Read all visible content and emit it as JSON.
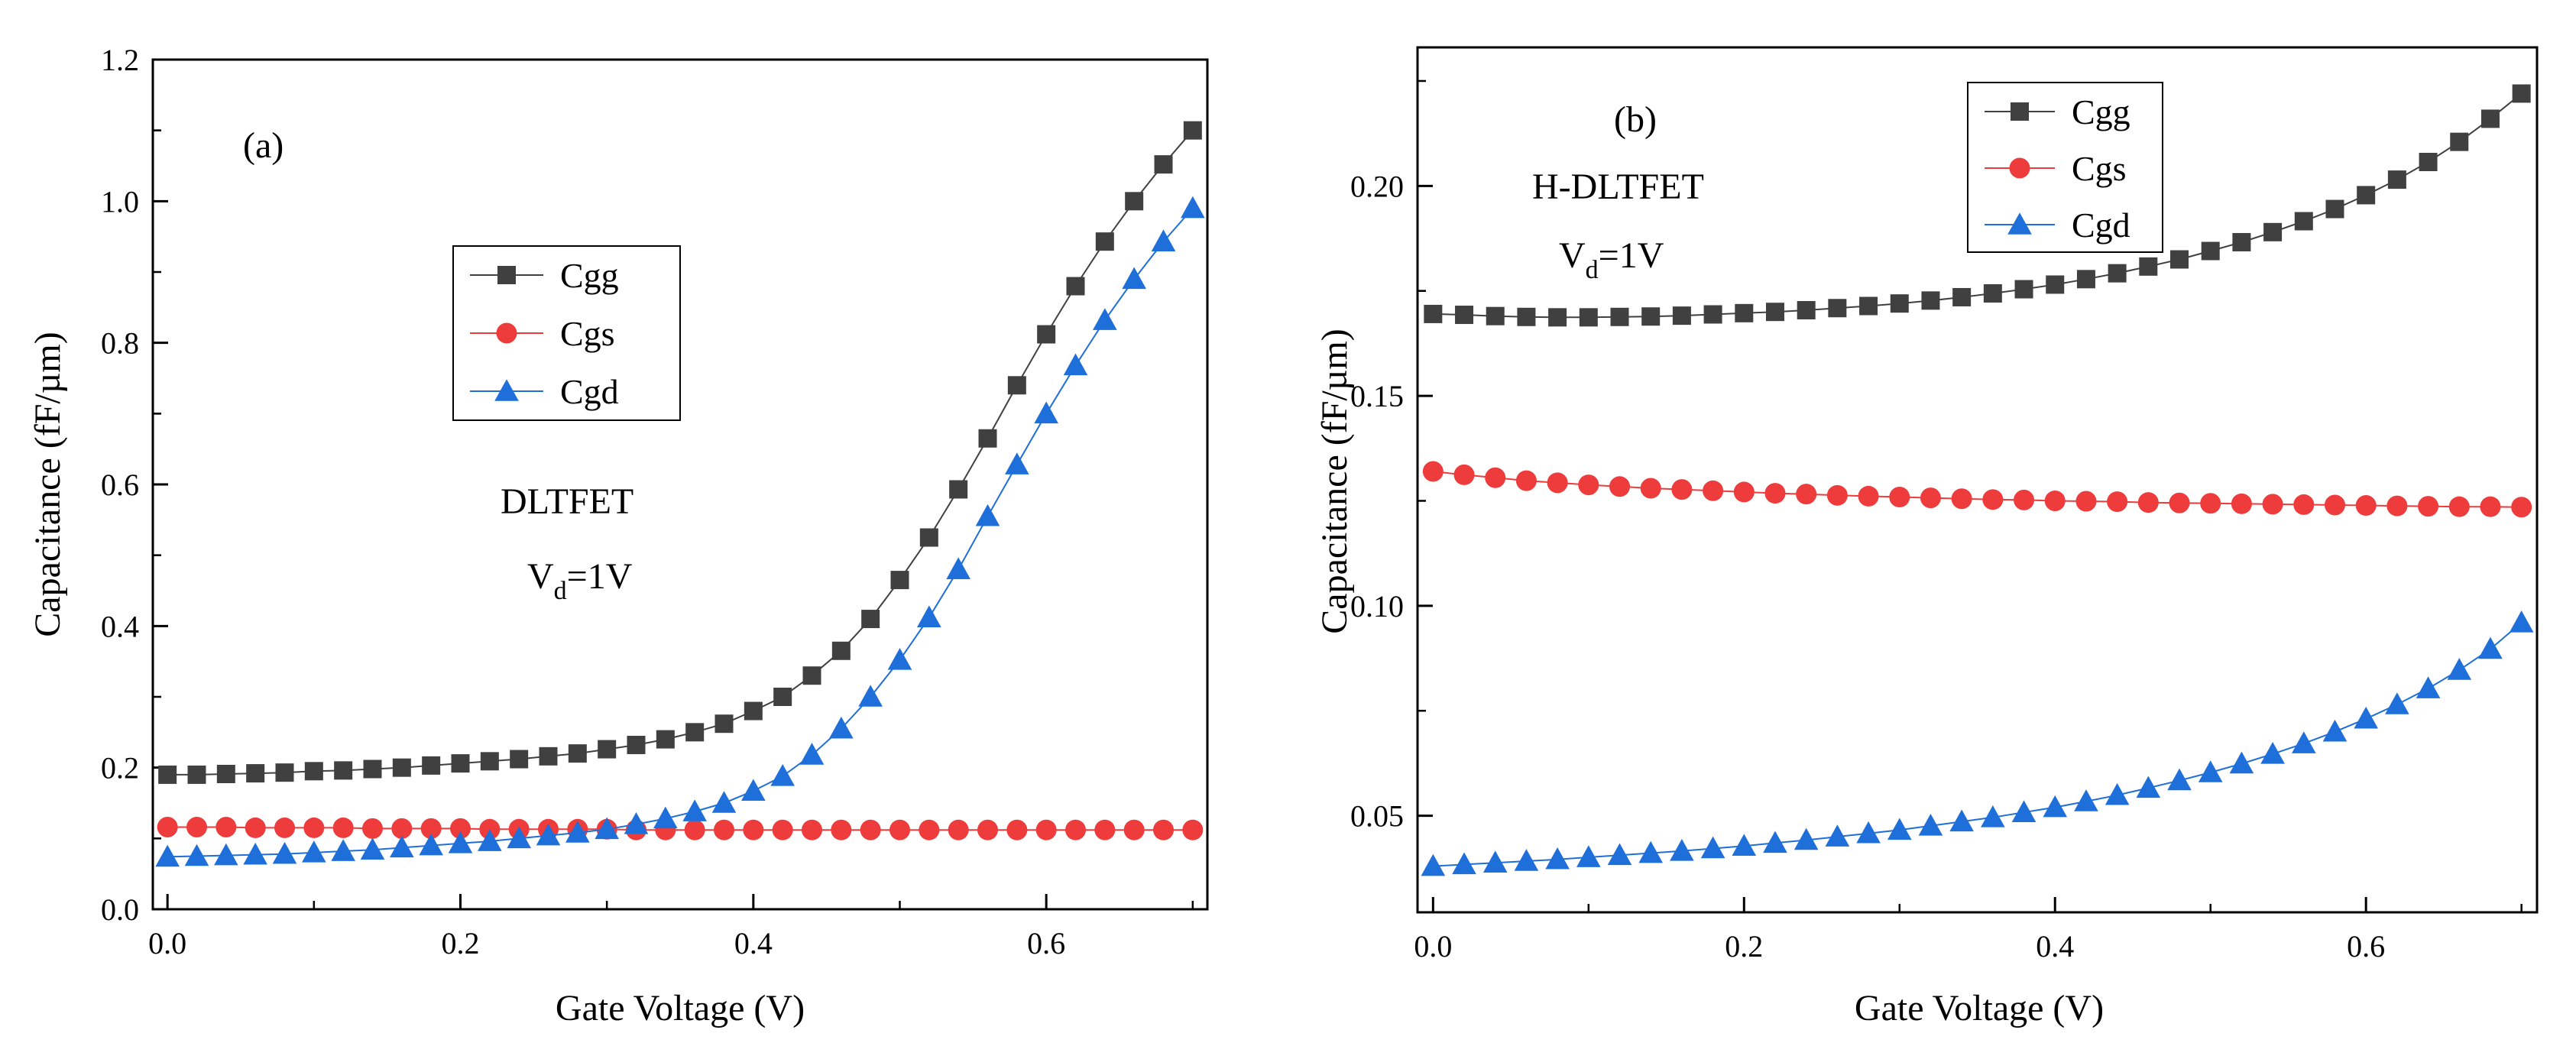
{
  "chart_data": [
    {
      "type": "line",
      "panel_label": "(a)",
      "device_name": "DLTFET",
      "bias_prefix": "V",
      "bias_sub": "d",
      "bias_value": "=1V",
      "xlabel": "Gate Voltage (V)",
      "ylabel": "Capacitance (fF/µm)",
      "xlim": [
        -0.01,
        0.71
      ],
      "ylim": [
        0.0,
        1.2
      ],
      "xticks": [
        0.0,
        0.2,
        0.4,
        0.6
      ],
      "xtick_labels": [
        "0.0",
        "0.2",
        "0.4",
        "0.6"
      ],
      "yticks": [
        0.0,
        0.2,
        0.4,
        0.6,
        0.8,
        1.0,
        1.2
      ],
      "ytick_labels": [
        "0.0",
        "0.2",
        "0.4",
        "0.6",
        "0.8",
        "1.0",
        "1.2"
      ],
      "legend_position": "upper-middle",
      "x": [
        0.0,
        0.02,
        0.04,
        0.06,
        0.08,
        0.1,
        0.12,
        0.14,
        0.16,
        0.18,
        0.2,
        0.22,
        0.24,
        0.26,
        0.28,
        0.3,
        0.32,
        0.34,
        0.36,
        0.38,
        0.4,
        0.42,
        0.44,
        0.46,
        0.48,
        0.5,
        0.52,
        0.54,
        0.56,
        0.58,
        0.6,
        0.62,
        0.64,
        0.66,
        0.68,
        0.7
      ],
      "series": [
        {
          "name": "Cgg",
          "marker": "square",
          "color": "#404040",
          "values": [
            0.19,
            0.19,
            0.191,
            0.192,
            0.193,
            0.195,
            0.196,
            0.198,
            0.2,
            0.203,
            0.206,
            0.209,
            0.212,
            0.216,
            0.22,
            0.226,
            0.232,
            0.24,
            0.25,
            0.262,
            0.28,
            0.3,
            0.33,
            0.365,
            0.41,
            0.465,
            0.525,
            0.593,
            0.665,
            0.74,
            0.812,
            0.88,
            0.943,
            1.0,
            1.052,
            1.1
          ]
        },
        {
          "name": "Cgs",
          "marker": "circle",
          "color": "#EE3B3B",
          "values": [
            0.116,
            0.116,
            0.116,
            0.115,
            0.115,
            0.115,
            0.115,
            0.114,
            0.114,
            0.114,
            0.114,
            0.113,
            0.113,
            0.113,
            0.113,
            0.113,
            0.112,
            0.112,
            0.112,
            0.112,
            0.112,
            0.112,
            0.112,
            0.112,
            0.112,
            0.112,
            0.112,
            0.112,
            0.112,
            0.112,
            0.112,
            0.112,
            0.112,
            0.112,
            0.112,
            0.112
          ]
        },
        {
          "name": "Cgd",
          "marker": "triangle",
          "color": "#1E6FD9",
          "values": [
            0.074,
            0.075,
            0.076,
            0.077,
            0.078,
            0.08,
            0.082,
            0.084,
            0.087,
            0.09,
            0.093,
            0.096,
            0.1,
            0.104,
            0.108,
            0.113,
            0.12,
            0.128,
            0.138,
            0.15,
            0.167,
            0.188,
            0.218,
            0.255,
            0.3,
            0.352,
            0.412,
            0.48,
            0.555,
            0.628,
            0.7,
            0.768,
            0.832,
            0.89,
            0.943,
            0.99
          ]
        }
      ]
    },
    {
      "type": "line",
      "panel_label": "(b)",
      "device_name": "H-DLTFET",
      "bias_prefix": "V",
      "bias_sub": "d",
      "bias_value": "=1V",
      "xlabel": "Gate Voltage (V)",
      "ylabel": "Capacitance (fF/µm)",
      "xlim": [
        -0.01,
        0.71
      ],
      "ylim": [
        0.027,
        0.233
      ],
      "xticks": [
        0.0,
        0.2,
        0.4,
        0.6
      ],
      "xtick_labels": [
        "0.0",
        "0.2",
        "0.4",
        "0.6"
      ],
      "yticks": [
        0.05,
        0.1,
        0.15,
        0.2
      ],
      "ytick_labels": [
        "0.05",
        "0.10",
        "0.15",
        "0.20"
      ],
      "legend_position": "top-right",
      "x": [
        0.0,
        0.02,
        0.04,
        0.06,
        0.08,
        0.1,
        0.12,
        0.14,
        0.16,
        0.18,
        0.2,
        0.22,
        0.24,
        0.26,
        0.28,
        0.3,
        0.32,
        0.34,
        0.36,
        0.38,
        0.4,
        0.42,
        0.44,
        0.46,
        0.48,
        0.5,
        0.52,
        0.54,
        0.56,
        0.58,
        0.6,
        0.62,
        0.64,
        0.66,
        0.68,
        0.7
      ],
      "series": [
        {
          "name": "Cgg",
          "marker": "square",
          "color": "#404040",
          "values": [
            0.1695,
            0.1693,
            0.169,
            0.1688,
            0.1687,
            0.1687,
            0.1688,
            0.1689,
            0.1691,
            0.1694,
            0.1697,
            0.17,
            0.1704,
            0.1709,
            0.1714,
            0.172,
            0.1727,
            0.1735,
            0.1744,
            0.1754,
            0.1765,
            0.1778,
            0.1792,
            0.1808,
            0.1825,
            0.1845,
            0.1866,
            0.189,
            0.1916,
            0.1945,
            0.1978,
            0.2015,
            0.2057,
            0.2105,
            0.216,
            0.222
          ]
        },
        {
          "name": "Cgs",
          "marker": "circle",
          "color": "#EE3B3B",
          "values": [
            0.132,
            0.1312,
            0.1305,
            0.1298,
            0.1293,
            0.1288,
            0.1284,
            0.128,
            0.1277,
            0.1274,
            0.1271,
            0.1268,
            0.1266,
            0.1263,
            0.1261,
            0.1259,
            0.1257,
            0.1255,
            0.1253,
            0.1252,
            0.125,
            0.1249,
            0.1248,
            0.1246,
            0.1245,
            0.1244,
            0.1243,
            0.1242,
            0.1241,
            0.124,
            0.1239,
            0.1238,
            0.1237,
            0.1236,
            0.1236,
            0.1235
          ]
        },
        {
          "name": "Cgd",
          "marker": "triangle",
          "color": "#1E6FD9",
          "values": [
            0.038,
            0.0384,
            0.0388,
            0.0392,
            0.0396,
            0.0401,
            0.0406,
            0.0411,
            0.0416,
            0.0422,
            0.0428,
            0.0435,
            0.0442,
            0.045,
            0.0458,
            0.0466,
            0.0476,
            0.0486,
            0.0496,
            0.0508,
            0.052,
            0.0534,
            0.0549,
            0.0566,
            0.0584,
            0.0603,
            0.0624,
            0.0647,
            0.0672,
            0.07,
            0.0731,
            0.0765,
            0.0803,
            0.0847,
            0.0897,
            0.096
          ]
        }
      ]
    }
  ]
}
